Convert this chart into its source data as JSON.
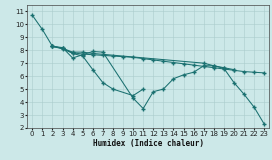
{
  "xlabel": "Humidex (Indice chaleur)",
  "xlim": [
    -0.5,
    23.5
  ],
  "ylim": [
    2,
    11.5
  ],
  "xticks": [
    0,
    1,
    2,
    3,
    4,
    5,
    6,
    7,
    8,
    9,
    10,
    11,
    12,
    13,
    14,
    15,
    16,
    17,
    18,
    19,
    20,
    21,
    22,
    23
  ],
  "yticks": [
    2,
    3,
    4,
    5,
    6,
    7,
    8,
    9,
    10,
    11
  ],
  "bg_color": "#cce8e8",
  "line_color": "#1a7070",
  "grid_color": "#aacccc",
  "tick_fontsize": 5.0,
  "series": [
    {
      "x": [
        0,
        1,
        2,
        3,
        4,
        5,
        6,
        7,
        10,
        11,
        12,
        13,
        14,
        15,
        16,
        17,
        18,
        19,
        20,
        21,
        22,
        23
      ],
      "y": [
        10.7,
        9.6,
        8.3,
        8.2,
        7.4,
        7.65,
        7.9,
        7.85,
        4.3,
        3.5,
        4.8,
        5.0,
        5.8,
        6.1,
        6.3,
        6.8,
        6.8,
        6.6,
        5.5,
        4.6,
        3.6,
        2.3
      ]
    },
    {
      "x": [
        2,
        3,
        4,
        5,
        6,
        7,
        8,
        10,
        11
      ],
      "y": [
        8.3,
        8.15,
        7.75,
        7.55,
        6.5,
        5.5,
        5.0,
        4.5,
        5.0
      ]
    },
    {
      "x": [
        2,
        3,
        4,
        5,
        6,
        17,
        18,
        19,
        20
      ],
      "y": [
        8.3,
        8.15,
        7.85,
        7.85,
        7.75,
        7.0,
        6.8,
        6.65,
        6.5
      ]
    },
    {
      "x": [
        2,
        3,
        4,
        5,
        6,
        7,
        8,
        9,
        10,
        11,
        12,
        13,
        14,
        15,
        16,
        17,
        18,
        19,
        20,
        21,
        22,
        23
      ],
      "y": [
        8.3,
        8.1,
        7.8,
        7.7,
        7.65,
        7.6,
        7.55,
        7.5,
        7.45,
        7.35,
        7.25,
        7.15,
        7.05,
        6.95,
        6.85,
        6.75,
        6.65,
        6.55,
        6.45,
        6.35,
        6.3,
        6.25
      ]
    }
  ]
}
